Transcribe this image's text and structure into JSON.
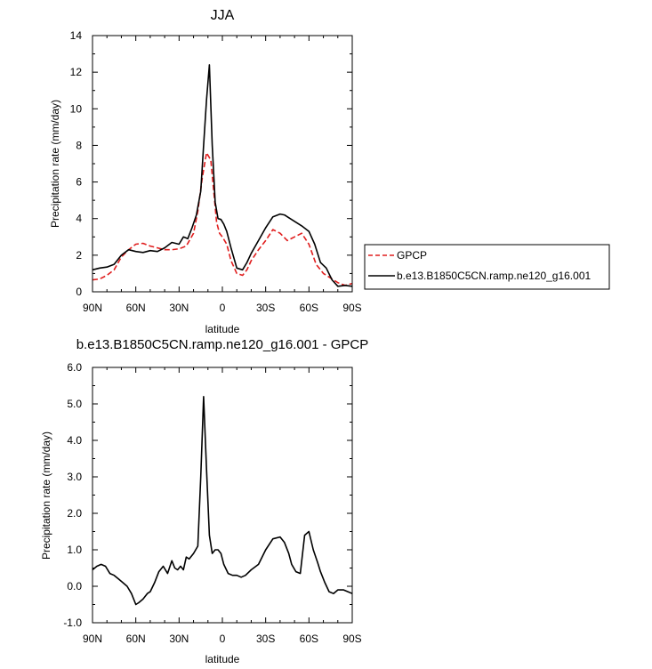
{
  "chart_data": [
    {
      "type": "line",
      "title": "JJA",
      "xlabel": "latitude",
      "ylabel": "Precipitation rate (mm/day)",
      "xlim": [
        90,
        -90
      ],
      "ylim": [
        0,
        14
      ],
      "xticks": [
        90,
        60,
        30,
        0,
        -30,
        -60,
        -90
      ],
      "xtick_labels": [
        "90N",
        "60N",
        "30N",
        "0",
        "30S",
        "60S",
        "90S"
      ],
      "yticks": [
        0,
        2,
        4,
        6,
        8,
        10,
        12,
        14
      ],
      "ytick_labels": [
        "0",
        "2",
        "4",
        "6",
        "8",
        "10",
        "12",
        "14"
      ],
      "legend_position": "right",
      "series": [
        {
          "name": "GPCP",
          "color": "#e01e1e",
          "dash": "dashed",
          "x": [
            90,
            85,
            80,
            75,
            70,
            65,
            60,
            55,
            50,
            45,
            40,
            35,
            30,
            25,
            20,
            17,
            14,
            11,
            8,
            6,
            4,
            2,
            0,
            -3,
            -6,
            -10,
            -14,
            -17,
            -20,
            -25,
            -30,
            -35,
            -40,
            -45,
            -50,
            -55,
            -60,
            -65,
            -70,
            -75,
            -80,
            -85,
            -90
          ],
          "y": [
            0.65,
            0.7,
            0.9,
            1.2,
            1.9,
            2.3,
            2.6,
            2.65,
            2.5,
            2.4,
            2.3,
            2.3,
            2.35,
            2.5,
            3.2,
            4.4,
            6.2,
            7.6,
            7.2,
            5.5,
            3.8,
            3.2,
            3.0,
            2.6,
            1.7,
            1.0,
            0.9,
            1.2,
            1.7,
            2.3,
            2.8,
            3.4,
            3.2,
            2.8,
            3.0,
            3.2,
            2.6,
            1.5,
            1.0,
            0.75,
            0.5,
            0.35,
            0.45
          ]
        },
        {
          "name": "b.e13.B1850C5CN.ramp.ne120_g16.001",
          "color": "#000000",
          "dash": "solid",
          "x": [
            90,
            85,
            80,
            75,
            70,
            65,
            60,
            55,
            50,
            45,
            40,
            35,
            30,
            27,
            24,
            21,
            18,
            15,
            13,
            11,
            9,
            7,
            5,
            3,
            1,
            -1,
            -3,
            -6,
            -10,
            -14,
            -17,
            -20,
            -25,
            -30,
            -35,
            -40,
            -43,
            -46,
            -50,
            -55,
            -60,
            -64,
            -68,
            -72,
            -76,
            -80,
            -85,
            -90
          ],
          "y": [
            1.2,
            1.3,
            1.35,
            1.5,
            2.0,
            2.3,
            2.2,
            2.15,
            2.25,
            2.2,
            2.4,
            2.7,
            2.6,
            3.0,
            2.9,
            3.5,
            4.2,
            5.5,
            8.0,
            10.5,
            12.4,
            8.0,
            4.9,
            4.0,
            3.95,
            3.7,
            3.3,
            2.4,
            1.3,
            1.2,
            1.6,
            2.1,
            2.8,
            3.5,
            4.1,
            4.25,
            4.2,
            4.05,
            3.85,
            3.6,
            3.3,
            2.6,
            1.6,
            1.3,
            0.65,
            0.3,
            0.35,
            0.3
          ]
        }
      ]
    },
    {
      "type": "line",
      "title": "b.e13.B1850C5CN.ramp.ne120_g16.001 - GPCP",
      "xlabel": "latitude",
      "ylabel": "Precipitation rate (mm/day)",
      "xlim": [
        90,
        -90
      ],
      "ylim": [
        -1,
        6
      ],
      "xticks": [
        90,
        60,
        30,
        0,
        -30,
        -60,
        -90
      ],
      "xtick_labels": [
        "90N",
        "60N",
        "30N",
        "0",
        "30S",
        "60S",
        "90S"
      ],
      "yticks": [
        -1,
        0,
        1,
        2,
        3,
        4,
        5,
        6
      ],
      "ytick_labels": [
        "-1.0",
        "0.0",
        "1.0",
        "2.0",
        "3.0",
        "4.0",
        "5.0",
        "6.0"
      ],
      "series": [
        {
          "color": "#000000",
          "dash": "solid",
          "x": [
            90,
            87,
            84,
            81,
            78,
            75,
            72,
            69,
            66,
            63,
            60,
            58,
            55,
            52,
            50,
            47,
            44,
            41,
            38,
            35,
            33,
            31,
            29,
            27,
            25,
            23,
            20,
            17,
            15,
            13,
            11,
            9,
            7,
            5,
            3,
            1,
            -1,
            -4,
            -7,
            -10,
            -13,
            -16,
            -20,
            -25,
            -30,
            -35,
            -40,
            -43,
            -46,
            -48,
            -51,
            -54,
            -57,
            -60,
            -63,
            -66,
            -68,
            -71,
            -74,
            -77,
            -80,
            -84,
            -87,
            -90
          ],
          "y": [
            0.45,
            0.55,
            0.6,
            0.55,
            0.35,
            0.3,
            0.2,
            0.1,
            0.0,
            -0.2,
            -0.5,
            -0.45,
            -0.35,
            -0.2,
            -0.15,
            0.1,
            0.4,
            0.55,
            0.35,
            0.7,
            0.5,
            0.45,
            0.55,
            0.45,
            0.8,
            0.75,
            0.9,
            1.1,
            3.0,
            5.2,
            3.2,
            1.4,
            0.9,
            1.0,
            1.0,
            0.9,
            0.6,
            0.35,
            0.3,
            0.3,
            0.25,
            0.3,
            0.45,
            0.6,
            1.0,
            1.3,
            1.35,
            1.2,
            0.9,
            0.6,
            0.4,
            0.35,
            1.4,
            1.5,
            1.0,
            0.65,
            0.4,
            0.1,
            -0.15,
            -0.2,
            -0.1,
            -0.1,
            -0.15,
            -0.2
          ]
        }
      ]
    }
  ]
}
